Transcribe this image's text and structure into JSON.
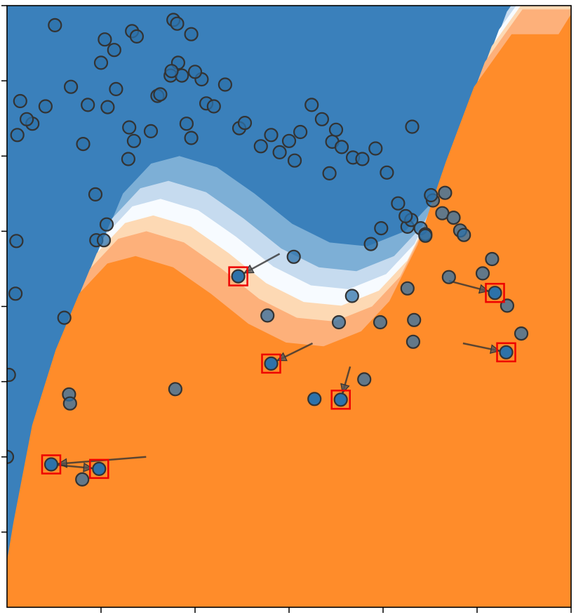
{
  "chart_data": {
    "type": "scatter",
    "title": "",
    "xlabel": "",
    "ylabel": "",
    "grid": false,
    "legend": "none",
    "xlim": [
      -1.5,
      4.5
    ],
    "ylim": [
      -3.0,
      5.0
    ],
    "colors": {
      "class_a_dark": "#3a80bb",
      "class_a_mid": "#7dafd6",
      "class_a_light": "#c6dbef",
      "boundary": "#f7fbff",
      "class_b_light": "#fdd9b4",
      "class_b_mid": "#fdb07a",
      "class_b_dark": "#ff8c2a",
      "point_fill": "#2d72aa",
      "point_edge": "#333333",
      "highlight": "#ee0000"
    },
    "region_boundary": {
      "x": [
        -1.5,
        -1.3,
        -1.1,
        -0.85,
        -0.6,
        -0.3,
        0.0,
        0.4,
        0.8,
        1.2,
        1.6,
        2.0,
        2.4,
        2.7,
        3.0,
        3.3,
        3.6,
        4.0,
        4.5
      ],
      "y": [
        -3.0,
        -1.5,
        -0.2,
        0.8,
        1.55,
        1.95,
        2.05,
        1.9,
        1.55,
        1.15,
        0.9,
        0.85,
        1.05,
        1.45,
        2.2,
        3.3,
        4.3,
        5.0,
        5.0
      ]
    },
    "original_points": {
      "x": [
        -0.99,
        -0.46,
        -0.17,
        -0.12,
        -0.36,
        -0.5,
        -0.82,
        -1.36,
        -1.23,
        -1.29,
        -1.39,
        -1.09,
        -0.69,
        -0.64,
        -0.43,
        -0.34,
        -0.2,
        0.03,
        0.1,
        0.13,
        0.24,
        0.32,
        0.36,
        0.41,
        0.46,
        0.57,
        0.62,
        0.7,
        0.82,
        0.97,
        1.03,
        1.2,
        1.31,
        1.4,
        1.5,
        1.56,
        1.62,
        1.74,
        1.85,
        1.93,
        1.96,
        2.0,
        2.06,
        2.18,
        2.28,
        2.42,
        2.54,
        2.66,
        2.76,
        2.8,
        2.9,
        2.95,
        2.95,
        3.03,
        3.13,
        3.16,
        3.25,
        3.32,
        3.36,
        3.56,
        3.66,
        -0.55,
        -0.56,
        -0.47,
        -0.44,
        -0.21,
        -0.15,
        0.25,
        0.27,
        0.31,
        0.46,
        0.5,
        -1.41,
        -1.4,
        -1.48,
        -0.84,
        -0.83,
        -0.7,
        -0.89,
        0.29,
        1.27,
        1.55,
        2.03,
        2.3,
        2.17,
        2.47,
        2.48,
        2.37,
        2.76,
        2.74,
        2.81,
        3.01,
        3.2,
        3.82,
        3.97,
        2.83,
        2.82
      ],
      "y": [
        4.74,
        4.55,
        4.66,
        4.59,
        4.41,
        4.24,
        3.92,
        3.73,
        3.43,
        3.49,
        3.28,
        3.66,
        3.16,
        3.68,
        3.65,
        3.89,
        3.38,
        3.33,
        3.8,
        3.82,
        4.07,
        4.24,
        4.07,
        3.43,
        3.24,
        4.02,
        3.7,
        3.66,
        3.95,
        3.37,
        3.44,
        3.13,
        3.28,
        3.05,
        3.2,
        2.94,
        3.32,
        3.68,
        3.49,
        2.77,
        3.19,
        3.35,
        3.12,
        2.98,
        2.96,
        3.1,
        2.78,
        2.37,
        2.06,
        2.15,
        2.04,
        1.96,
        1.94,
        2.41,
        2.24,
        2.51,
        2.18,
        2.01,
        1.95,
        1.44,
        1.63,
        1.88,
        2.49,
        1.88,
        2.09,
        2.96,
        3.2,
        4.13,
        4.81,
        4.76,
        4.62,
        4.12,
        1.17,
        1.87,
        0.09,
        -0.17,
        -0.29,
        -1.3,
        0.85,
        -0.1,
        0.88,
        1.66,
        0.79,
        0.03,
        1.14,
        0.79,
        2.04,
        1.83,
        1.24,
        2.2,
        3.39,
        2.48,
        1.39,
        1.01,
        0.64,
        0.82,
        0.53
      ],
      "_comment": ""
    },
    "adversarial_pairs": [
      {
        "from": [
          1.4,
          1.7
        ],
        "to": [
          0.96,
          1.4
        ]
      },
      {
        "from": [
          1.75,
          0.51
        ],
        "to": [
          1.31,
          0.24
        ]
      },
      {
        "from": [
          2.15,
          0.2
        ],
        "to": [
          2.05,
          -0.24
        ]
      },
      {
        "from": [
          3.35,
          0.51
        ],
        "to": [
          3.81,
          0.39
        ]
      },
      {
        "from": [
          3.2,
          1.34
        ],
        "to": [
          3.69,
          1.18
        ]
      },
      {
        "from": [
          -0.02,
          -1.0
        ],
        "to": [
          -1.03,
          -1.1
        ]
      },
      {
        "from": [
          -1.03,
          -1.1
        ],
        "to": [
          -0.52,
          -1.16
        ]
      }
    ],
    "extra_points": {
      "x": [
        1.77,
        -1.5
      ],
      "y": [
        -0.23,
        -1.0
      ]
    }
  }
}
